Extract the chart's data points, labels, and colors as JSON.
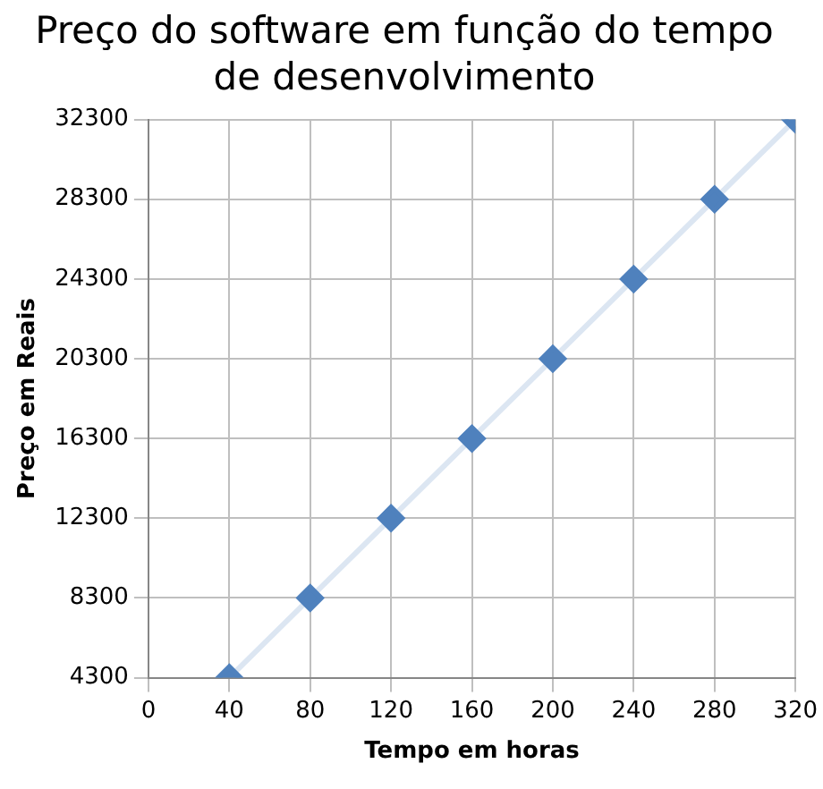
{
  "chart_data": {
    "type": "line",
    "title": "Preço do software em função do tempo de desenvolvimento",
    "xlabel": "Tempo em horas",
    "ylabel": "Preço em Reais",
    "x": [
      40,
      80,
      120,
      160,
      200,
      240,
      280,
      320
    ],
    "series": [
      {
        "color": "#4f81bd",
        "values": [
          4300,
          8300,
          12300,
          16300,
          20300,
          24300,
          28300,
          32300
        ]
      }
    ],
    "xlim": [
      0,
      320
    ],
    "xticks": [
      0,
      40,
      80,
      120,
      160,
      200,
      240,
      280,
      320
    ],
    "ylim": [
      4300,
      32300
    ],
    "yticks": [
      4300,
      8300,
      12300,
      16300,
      20300,
      24300,
      28300,
      32300
    ],
    "grid": true,
    "legend": false,
    "marker": "diamond",
    "line_style": "solid"
  }
}
